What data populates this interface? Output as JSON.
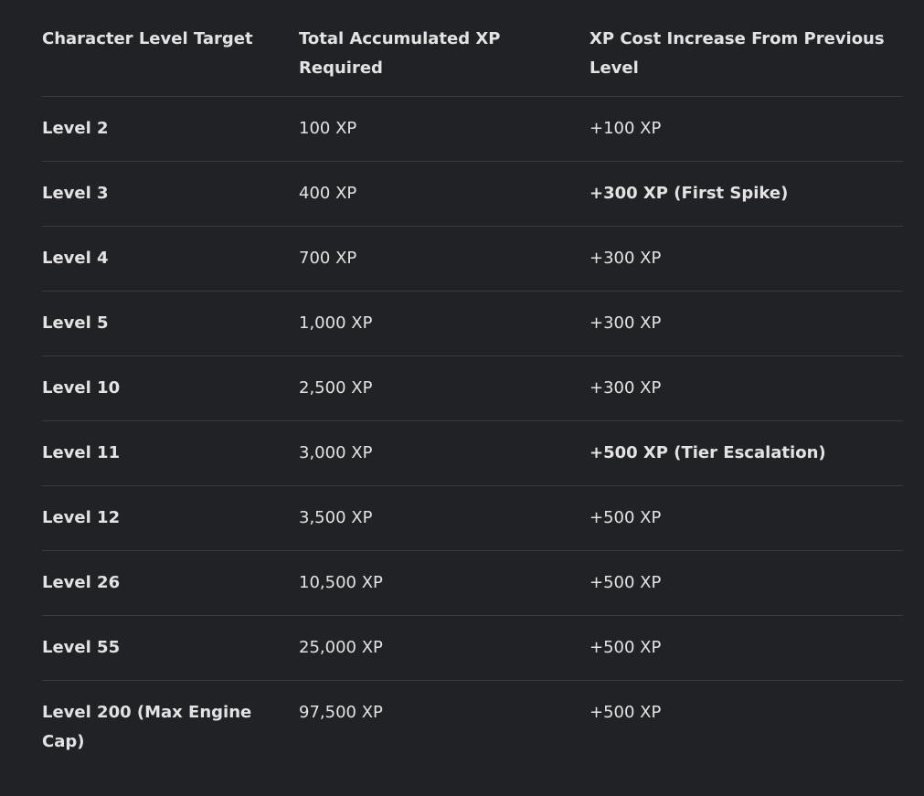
{
  "table": {
    "header": [
      "Character Level Target",
      "Total Accumulated XP Required",
      "XP Cost Increase From Previous Level"
    ],
    "rows": [
      [
        "Level 2",
        "100 XP",
        "+100 XP"
      ],
      [
        "Level 3",
        "400 XP",
        "+300 XP (First Spike)"
      ],
      [
        "Level 4",
        "700 XP",
        "+300 XP"
      ],
      [
        "Level 5",
        "1,000 XP",
        "+300 XP"
      ],
      [
        "Level 10",
        "2,500 XP",
        "+300 XP"
      ],
      [
        "Level 11",
        "3,000 XP",
        "+500 XP (Tier Escalation)"
      ],
      [
        "Level 12",
        "3,500 XP",
        "+500 XP"
      ],
      [
        "Level 26",
        "10,500 XP",
        "+500 XP"
      ],
      [
        "Level 55",
        "25,000 XP",
        "+500 XP"
      ],
      [
        "Level 200 (Max Engine Cap)",
        "97,500 XP",
        "+500 XP"
      ]
    ]
  }
}
